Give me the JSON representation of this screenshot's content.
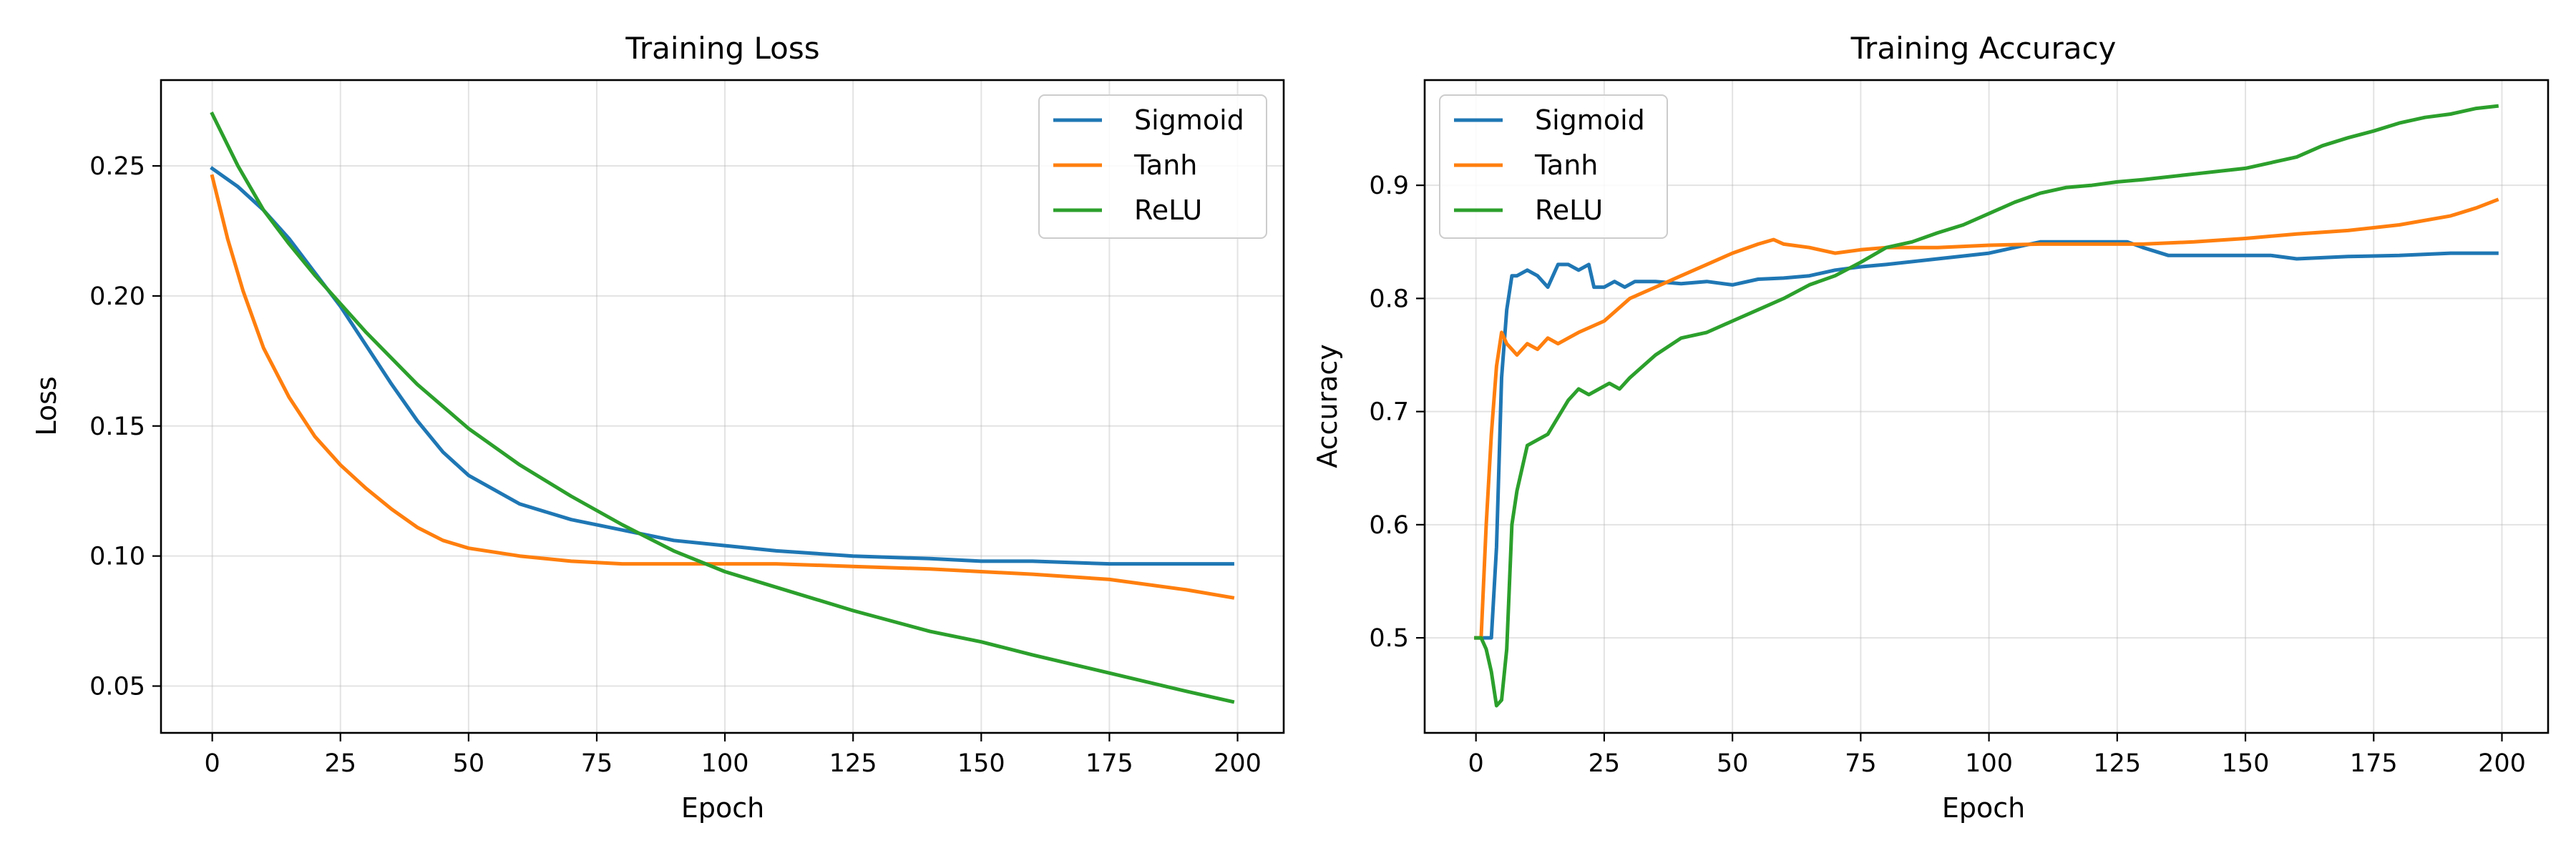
{
  "chart_data": [
    {
      "type": "line",
      "title": "Training Loss",
      "xlabel": "Epoch",
      "ylabel": "Loss",
      "xlim": [
        -10,
        209
      ],
      "ylim": [
        0.032,
        0.283
      ],
      "xticks": [
        0,
        25,
        50,
        75,
        100,
        125,
        150,
        175,
        200
      ],
      "yticks": [
        0.05,
        0.1,
        0.15,
        0.2,
        0.25
      ],
      "ytick_labels": [
        "0.05",
        "0.10",
        "0.15",
        "0.20",
        "0.25"
      ],
      "grid": true,
      "legend": "upper right",
      "series": [
        {
          "name": "Sigmoid",
          "color": "#1f77b4",
          "x": [
            0,
            5,
            10,
            15,
            20,
            25,
            30,
            35,
            40,
            45,
            50,
            60,
            70,
            80,
            90,
            100,
            110,
            125,
            140,
            150,
            160,
            175,
            199
          ],
          "y": [
            0.249,
            0.242,
            0.233,
            0.222,
            0.209,
            0.196,
            0.181,
            0.166,
            0.152,
            0.14,
            0.131,
            0.12,
            0.114,
            0.11,
            0.106,
            0.104,
            0.102,
            0.1,
            0.099,
            0.098,
            0.098,
            0.097,
            0.097
          ]
        },
        {
          "name": "Tanh",
          "color": "#ff7f0e",
          "x": [
            0,
            3,
            6,
            10,
            15,
            20,
            25,
            30,
            35,
            40,
            45,
            50,
            60,
            70,
            80,
            90,
            100,
            110,
            125,
            140,
            150,
            160,
            175,
            190,
            199
          ],
          "y": [
            0.246,
            0.222,
            0.202,
            0.18,
            0.161,
            0.146,
            0.135,
            0.126,
            0.118,
            0.111,
            0.106,
            0.103,
            0.1,
            0.098,
            0.097,
            0.097,
            0.097,
            0.097,
            0.096,
            0.095,
            0.094,
            0.093,
            0.091,
            0.087,
            0.084
          ]
        },
        {
          "name": "ReLU",
          "color": "#2ca02c",
          "x": [
            0,
            5,
            10,
            15,
            20,
            25,
            30,
            40,
            50,
            60,
            70,
            80,
            90,
            100,
            110,
            125,
            140,
            150,
            160,
            175,
            190,
            199
          ],
          "y": [
            0.27,
            0.25,
            0.233,
            0.22,
            0.208,
            0.197,
            0.186,
            0.166,
            0.149,
            0.135,
            0.123,
            0.112,
            0.102,
            0.094,
            0.088,
            0.079,
            0.071,
            0.067,
            0.062,
            0.055,
            0.048,
            0.044
          ]
        }
      ]
    },
    {
      "type": "line",
      "title": "Training Accuracy",
      "xlabel": "Epoch",
      "ylabel": "Accuracy",
      "xlim": [
        -10,
        209
      ],
      "ylim": [
        0.416,
        0.993
      ],
      "xticks": [
        0,
        25,
        50,
        75,
        100,
        125,
        150,
        175,
        200
      ],
      "yticks": [
        0.5,
        0.6,
        0.7,
        0.8,
        0.9
      ],
      "ytick_labels": [
        "0.5",
        "0.6",
        "0.7",
        "0.8",
        "0.9"
      ],
      "grid": true,
      "legend": "upper left",
      "series": [
        {
          "name": "Sigmoid",
          "color": "#1f77b4",
          "x": [
            0,
            2,
            3,
            4,
            5,
            6,
            7,
            8,
            10,
            12,
            14,
            16,
            18,
            20,
            22,
            23,
            25,
            27,
            29,
            31,
            35,
            40,
            45,
            50,
            55,
            60,
            65,
            70,
            75,
            80,
            90,
            100,
            105,
            110,
            120,
            127,
            130,
            135,
            145,
            155,
            160,
            170,
            180,
            190,
            199
          ],
          "y": [
            0.5,
            0.5,
            0.5,
            0.58,
            0.73,
            0.79,
            0.82,
            0.82,
            0.825,
            0.82,
            0.81,
            0.83,
            0.83,
            0.825,
            0.83,
            0.81,
            0.81,
            0.815,
            0.81,
            0.815,
            0.815,
            0.813,
            0.815,
            0.812,
            0.817,
            0.818,
            0.82,
            0.825,
            0.828,
            0.83,
            0.835,
            0.84,
            0.845,
            0.85,
            0.85,
            0.85,
            0.845,
            0.838,
            0.838,
            0.838,
            0.835,
            0.837,
            0.838,
            0.84,
            0.84
          ]
        },
        {
          "name": "Tanh",
          "color": "#ff7f0e",
          "x": [
            0,
            1,
            2,
            3,
            4,
            5,
            6,
            7,
            8,
            10,
            12,
            14,
            16,
            18,
            20,
            25,
            30,
            35,
            40,
            45,
            50,
            55,
            58,
            60,
            65,
            70,
            75,
            80,
            90,
            100,
            110,
            120,
            130,
            140,
            150,
            160,
            170,
            180,
            190,
            195,
            199
          ],
          "y": [
            0.5,
            0.5,
            0.6,
            0.68,
            0.74,
            0.77,
            0.76,
            0.755,
            0.75,
            0.76,
            0.755,
            0.765,
            0.76,
            0.765,
            0.77,
            0.78,
            0.8,
            0.81,
            0.82,
            0.83,
            0.84,
            0.848,
            0.852,
            0.848,
            0.845,
            0.84,
            0.843,
            0.845,
            0.845,
            0.847,
            0.848,
            0.848,
            0.848,
            0.85,
            0.853,
            0.857,
            0.86,
            0.865,
            0.873,
            0.88,
            0.887
          ]
        },
        {
          "name": "ReLU",
          "color": "#2ca02c",
          "x": [
            0,
            1,
            2,
            3,
            4,
            5,
            6,
            7,
            8,
            10,
            12,
            14,
            16,
            18,
            20,
            22,
            24,
            26,
            28,
            30,
            35,
            40,
            45,
            50,
            55,
            60,
            65,
            70,
            75,
            80,
            85,
            90,
            95,
            100,
            105,
            110,
            115,
            120,
            125,
            130,
            140,
            150,
            160,
            165,
            170,
            175,
            180,
            185,
            190,
            195,
            199
          ],
          "y": [
            0.5,
            0.5,
            0.49,
            0.47,
            0.44,
            0.445,
            0.49,
            0.6,
            0.63,
            0.67,
            0.675,
            0.68,
            0.695,
            0.71,
            0.72,
            0.715,
            0.72,
            0.725,
            0.72,
            0.73,
            0.75,
            0.765,
            0.77,
            0.78,
            0.79,
            0.8,
            0.812,
            0.82,
            0.832,
            0.845,
            0.85,
            0.858,
            0.865,
            0.875,
            0.885,
            0.893,
            0.898,
            0.9,
            0.903,
            0.905,
            0.91,
            0.915,
            0.925,
            0.935,
            0.942,
            0.948,
            0.955,
            0.96,
            0.963,
            0.968,
            0.97
          ]
        }
      ]
    }
  ]
}
